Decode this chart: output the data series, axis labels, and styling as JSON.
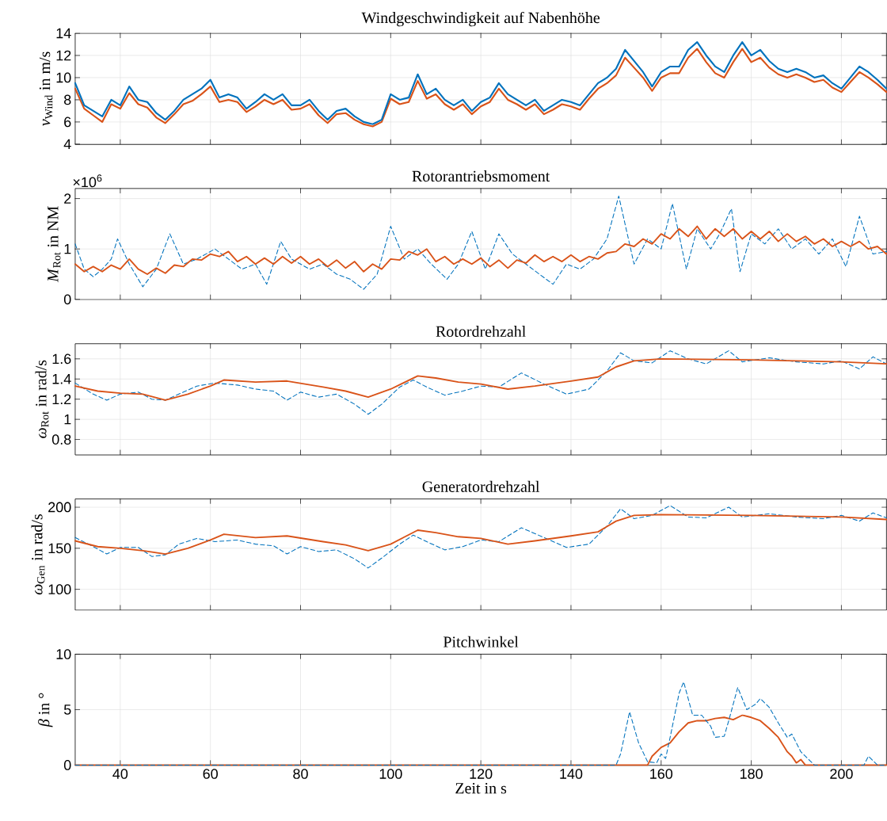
{
  "chart_data": [
    {
      "type": "line",
      "title": "Windgeschwindigkeit auf Nabenhöhe",
      "ylabel": "*v*$_{Wind}$ in m/s",
      "xlim": [
        30,
        210
      ],
      "xticks": [
        40,
        60,
        80,
        100,
        120,
        140,
        160,
        180,
        200
      ],
      "ylim": [
        4,
        14
      ],
      "yticks": [
        4,
        6,
        8,
        10,
        12,
        14
      ],
      "grid": true,
      "tick_labels": "y",
      "x": [
        30,
        32,
        34,
        36,
        38,
        40,
        42,
        44,
        46,
        48,
        50,
        52,
        54,
        56,
        58,
        60,
        62,
        64,
        66,
        68,
        70,
        72,
        74,
        76,
        78,
        80,
        82,
        84,
        86,
        88,
        90,
        92,
        94,
        96,
        98,
        100,
        102,
        104,
        106,
        108,
        110,
        112,
        114,
        116,
        118,
        120,
        122,
        124,
        126,
        128,
        130,
        132,
        134,
        136,
        138,
        140,
        142,
        144,
        146,
        148,
        150,
        152,
        154,
        156,
        158,
        160,
        162,
        164,
        166,
        168,
        170,
        172,
        174,
        176,
        178,
        180,
        182,
        184,
        186,
        188,
        190,
        192,
        194,
        196,
        198,
        200,
        202,
        204,
        206,
        208,
        210
      ],
      "series": [
        {
          "color": "#d95319",
          "line_style": "solid",
          "values": [
            9.0,
            7.2,
            6.6,
            6.0,
            7.6,
            7.2,
            8.6,
            7.6,
            7.3,
            6.4,
            5.9,
            6.7,
            7.6,
            7.9,
            8.5,
            9.2,
            7.8,
            8.0,
            7.8,
            6.9,
            7.4,
            8.0,
            7.6,
            8.0,
            7.1,
            7.2,
            7.6,
            6.6,
            5.9,
            6.7,
            6.8,
            6.2,
            5.8,
            5.6,
            6.0,
            8.1,
            7.6,
            7.8,
            9.7,
            8.1,
            8.5,
            7.6,
            7.1,
            7.6,
            6.7,
            7.4,
            7.8,
            9.0,
            8.0,
            7.6,
            7.1,
            7.6,
            6.7,
            7.1,
            7.6,
            7.4,
            7.1,
            8.1,
            9.0,
            9.5,
            10.2,
            11.8,
            10.9,
            10.0,
            8.8,
            10.0,
            10.4,
            10.4,
            11.8,
            12.6,
            11.4,
            10.4,
            10.0,
            11.4,
            12.6,
            11.4,
            11.8,
            10.9,
            10.3,
            10.0,
            10.3,
            10.0,
            9.6,
            9.8,
            9.1,
            8.7,
            9.6,
            10.5,
            10.0,
            9.4,
            8.7
          ]
        },
        {
          "color": "#0072bd",
          "line_style": "solid",
          "values": [
            9.5,
            7.5,
            7.0,
            6.5,
            8.0,
            7.5,
            9.2,
            8.0,
            7.8,
            6.8,
            6.2,
            7.0,
            8.0,
            8.5,
            9.0,
            9.8,
            8.2,
            8.5,
            8.2,
            7.2,
            7.8,
            8.5,
            8.0,
            8.5,
            7.5,
            7.5,
            8.0,
            7.0,
            6.2,
            7.0,
            7.2,
            6.5,
            6.0,
            5.8,
            6.2,
            8.5,
            8.0,
            8.2,
            10.3,
            8.5,
            9.0,
            8.0,
            7.5,
            8.0,
            7.0,
            7.8,
            8.2,
            9.5,
            8.5,
            8.0,
            7.5,
            8.0,
            7.0,
            7.5,
            8.0,
            7.8,
            7.5,
            8.5,
            9.5,
            10.0,
            10.8,
            12.5,
            11.5,
            10.5,
            9.2,
            10.5,
            11.0,
            11.0,
            12.5,
            13.2,
            12.0,
            11.0,
            10.5,
            12.0,
            13.2,
            12.0,
            12.5,
            11.5,
            10.8,
            10.5,
            10.8,
            10.5,
            10.0,
            10.2,
            9.5,
            9.0,
            10.0,
            11.0,
            10.5,
            9.8,
            9.0
          ]
        }
      ]
    },
    {
      "type": "line",
      "title": "Rotorantriebsmoment",
      "ylabel": "*M*$_{Rot}$ in NM",
      "annotations": [
        "×10$^{6}$"
      ],
      "xlim": [
        30,
        210
      ],
      "xticks": [
        40,
        60,
        80,
        100,
        120,
        140,
        160,
        180,
        200
      ],
      "ylim": [
        0,
        2.2
      ],
      "yticks": [
        0,
        1,
        2
      ],
      "grid": true,
      "tick_labels": "y",
      "series": [
        {
          "color": "#0072bd",
          "line_style": "dashed",
          "x": [
            30,
            32,
            34,
            36,
            38,
            39.4,
            42,
            45,
            48,
            51,
            54,
            57,
            61,
            64,
            67,
            70,
            72.5,
            75.6,
            78,
            82,
            85,
            88,
            91,
            94,
            97,
            100,
            103,
            106,
            109,
            112.5,
            115,
            118,
            121,
            124,
            127,
            130,
            133,
            136,
            139,
            142,
            145,
            148,
            150.6,
            154,
            157,
            160,
            162.5,
            165.6,
            168,
            171,
            173,
            175.6,
            177.5,
            180,
            183,
            186,
            189,
            192,
            195,
            198,
            201,
            204,
            207,
            210
          ],
          "values": [
            1.1,
            0.6,
            0.45,
            0.6,
            0.8,
            1.2,
            0.7,
            0.25,
            0.6,
            1.3,
            0.7,
            0.8,
            1.0,
            0.8,
            0.6,
            0.7,
            0.3,
            1.15,
            0.8,
            0.6,
            0.7,
            0.5,
            0.4,
            0.2,
            0.5,
            1.45,
            0.8,
            1.0,
            0.7,
            0.4,
            0.7,
            1.35,
            0.6,
            1.3,
            0.9,
            0.7,
            0.5,
            0.3,
            0.7,
            0.6,
            0.8,
            1.2,
            2.05,
            0.7,
            1.2,
            1.0,
            1.9,
            0.6,
            1.4,
            1.0,
            1.3,
            1.8,
            0.55,
            1.3,
            1.1,
            1.4,
            1.0,
            1.2,
            0.9,
            1.2,
            0.65,
            1.65,
            0.9,
            0.95
          ]
        },
        {
          "color": "#d95319",
          "line_style": "solid",
          "x": [
            30,
            32,
            34,
            36,
            38,
            40,
            42,
            44,
            46,
            48,
            50,
            52,
            54,
            56,
            58,
            60,
            62,
            64,
            66,
            68,
            70,
            72,
            74,
            76,
            78,
            80,
            82,
            84,
            86,
            88,
            90,
            92,
            94,
            96,
            98,
            100,
            102,
            104,
            106,
            108,
            110,
            112,
            114,
            116,
            118,
            120,
            122,
            124,
            126,
            128,
            130,
            132,
            134,
            136,
            138,
            140,
            142,
            144,
            146,
            148,
            150,
            152,
            154,
            156,
            158,
            160,
            162,
            164,
            166,
            168,
            170,
            172,
            174,
            176,
            178,
            180,
            182,
            184,
            186,
            188,
            190,
            192,
            194,
            196,
            198,
            200,
            202,
            204,
            206,
            208,
            210
          ],
          "values": [
            0.7,
            0.55,
            0.65,
            0.55,
            0.68,
            0.6,
            0.8,
            0.6,
            0.5,
            0.62,
            0.52,
            0.68,
            0.65,
            0.8,
            0.78,
            0.9,
            0.85,
            0.95,
            0.75,
            0.85,
            0.7,
            0.82,
            0.7,
            0.85,
            0.72,
            0.85,
            0.7,
            0.8,
            0.65,
            0.78,
            0.62,
            0.75,
            0.55,
            0.7,
            0.6,
            0.8,
            0.78,
            0.95,
            0.88,
            1.0,
            0.75,
            0.85,
            0.7,
            0.8,
            0.7,
            0.82,
            0.65,
            0.78,
            0.62,
            0.78,
            0.72,
            0.88,
            0.75,
            0.85,
            0.75,
            0.88,
            0.75,
            0.85,
            0.8,
            0.92,
            0.95,
            1.1,
            1.05,
            1.2,
            1.1,
            1.3,
            1.2,
            1.4,
            1.25,
            1.45,
            1.2,
            1.4,
            1.25,
            1.4,
            1.2,
            1.35,
            1.2,
            1.35,
            1.15,
            1.3,
            1.15,
            1.25,
            1.1,
            1.2,
            1.05,
            1.15,
            1.05,
            1.15,
            1.0,
            1.05,
            0.9
          ]
        }
      ]
    },
    {
      "type": "line",
      "title": "Rotordrehzahl",
      "ylabel": "*ω*$_{Rot}$ in rad/s",
      "xlim": [
        30,
        210
      ],
      "xticks": [
        40,
        60,
        80,
        100,
        120,
        140,
        160,
        180,
        200
      ],
      "ylim": [
        0.65,
        1.75
      ],
      "yticks": [
        0.8,
        1,
        1.2,
        1.4,
        1.6
      ],
      "grid": true,
      "tick_labels": "y",
      "series": [
        {
          "color": "#0072bd",
          "line_style": "dashed",
          "x": [
            30,
            34,
            37,
            40,
            44,
            47,
            50,
            53,
            57,
            61,
            66,
            70,
            74,
            77,
            80,
            84,
            88,
            92,
            95,
            98,
            102,
            105,
            108,
            112,
            116,
            120,
            124,
            129,
            134,
            139,
            144,
            148,
            151,
            154,
            158,
            162,
            166,
            170,
            175,
            178,
            184,
            190,
            196,
            200,
            204,
            207,
            210
          ],
          "values": [
            1.36,
            1.25,
            1.19,
            1.25,
            1.27,
            1.2,
            1.19,
            1.25,
            1.33,
            1.36,
            1.34,
            1.3,
            1.28,
            1.19,
            1.27,
            1.22,
            1.25,
            1.15,
            1.05,
            1.15,
            1.32,
            1.39,
            1.32,
            1.24,
            1.28,
            1.33,
            1.32,
            1.46,
            1.35,
            1.25,
            1.3,
            1.48,
            1.66,
            1.58,
            1.56,
            1.68,
            1.6,
            1.55,
            1.68,
            1.57,
            1.61,
            1.57,
            1.55,
            1.58,
            1.5,
            1.62,
            1.55
          ]
        },
        {
          "color": "#d95319",
          "line_style": "solid",
          "x": [
            30,
            35,
            40,
            45,
            50,
            55,
            60,
            63,
            70,
            77,
            85,
            90,
            95,
            100,
            106,
            110,
            115,
            120,
            126,
            132,
            140,
            146,
            150,
            154,
            160,
            180,
            190,
            200,
            210
          ],
          "values": [
            1.33,
            1.28,
            1.26,
            1.25,
            1.19,
            1.25,
            1.33,
            1.39,
            1.37,
            1.38,
            1.32,
            1.28,
            1.22,
            1.3,
            1.43,
            1.41,
            1.37,
            1.35,
            1.3,
            1.33,
            1.38,
            1.42,
            1.52,
            1.58,
            1.6,
            1.59,
            1.58,
            1.57,
            1.55
          ]
        }
      ]
    },
    {
      "type": "line",
      "title": "Generatordrehzahl",
      "ylabel": "*ω*$_{Gen}$ in rad/s",
      "xlim": [
        30,
        210
      ],
      "xticks": [
        40,
        60,
        80,
        100,
        120,
        140,
        160,
        180,
        200
      ],
      "ylim": [
        75,
        210
      ],
      "yticks": [
        100,
        150,
        200
      ],
      "grid": true,
      "tick_labels": "y",
      "series": [
        {
          "color": "#0072bd",
          "line_style": "dashed",
          "x": [
            30,
            34,
            37,
            40,
            44,
            47,
            50,
            53,
            57,
            61,
            66,
            70,
            74,
            77,
            80,
            84,
            88,
            92,
            95,
            98,
            102,
            105,
            108,
            112,
            116,
            120,
            124,
            129,
            134,
            139,
            144,
            148,
            151,
            154,
            158,
            162,
            166,
            170,
            175,
            178,
            184,
            190,
            196,
            200,
            204,
            207,
            210
          ],
          "values": [
            163,
            152,
            143,
            151,
            151,
            140,
            142,
            155,
            162,
            158,
            160,
            155,
            153,
            143,
            152,
            146,
            148,
            137,
            126,
            138,
            155,
            166,
            158,
            148,
            152,
            160,
            158,
            175,
            163,
            151,
            155,
            177,
            198,
            186,
            190,
            202,
            188,
            187,
            200,
            188,
            192,
            188,
            186,
            190,
            183,
            193,
            187
          ]
        },
        {
          "color": "#d95319",
          "line_style": "solid",
          "x": [
            30,
            35,
            40,
            45,
            50,
            55,
            60,
            63,
            70,
            77,
            85,
            90,
            95,
            100,
            106,
            110,
            115,
            120,
            126,
            132,
            140,
            146,
            150,
            154,
            160,
            180,
            190,
            200,
            210
          ],
          "values": [
            159,
            152,
            150,
            147,
            143,
            150,
            160,
            167,
            163,
            165,
            158,
            154,
            147,
            155,
            172,
            169,
            164,
            162,
            155,
            159,
            165,
            170,
            183,
            190,
            191,
            190,
            189,
            188,
            185
          ]
        }
      ]
    },
    {
      "type": "line",
      "title": "Pitchwinkel",
      "ylabel": "*β* in °",
      "xlabel": "Zeit in s",
      "xlim": [
        30,
        210
      ],
      "xticks": [
        40,
        60,
        80,
        100,
        120,
        140,
        160,
        180,
        200
      ],
      "ylim": [
        0,
        10
      ],
      "yticks": [
        0,
        5,
        10
      ],
      "grid": true,
      "series": [
        {
          "color": "#d95319",
          "line_style": "solid",
          "x": [
            30,
            157,
            158,
            160,
            162,
            164,
            166,
            168,
            170,
            172,
            174,
            176,
            178,
            180,
            182,
            184,
            186,
            188,
            189,
            190,
            191,
            192,
            210
          ],
          "values": [
            0,
            0,
            0.8,
            1.6,
            2.0,
            3.0,
            3.8,
            4.0,
            4.0,
            4.2,
            4.3,
            4.1,
            4.5,
            4.3,
            4.0,
            3.3,
            2.5,
            1.2,
            0.8,
            0.2,
            0.5,
            0,
            0
          ]
        },
        {
          "color": "#0072bd",
          "line_style": "dashed",
          "x": [
            30,
            150,
            151,
            153,
            155,
            157,
            159,
            160,
            161,
            162,
            164,
            165,
            167,
            169,
            171,
            172,
            174,
            175,
            177,
            179,
            181,
            182,
            184,
            186,
            188,
            189,
            191,
            193,
            194,
            205,
            206,
            208,
            210
          ],
          "values": [
            0,
            0,
            1,
            4.8,
            2,
            0.3,
            0.2,
            1,
            0.6,
            2.5,
            6.5,
            7.5,
            4.5,
            4.5,
            3.5,
            2.5,
            2.6,
            4,
            7,
            5,
            5.5,
            6,
            5.2,
            3.8,
            2.5,
            2.8,
            1.2,
            0.4,
            0,
            0,
            0.8,
            0,
            0
          ]
        }
      ]
    }
  ]
}
